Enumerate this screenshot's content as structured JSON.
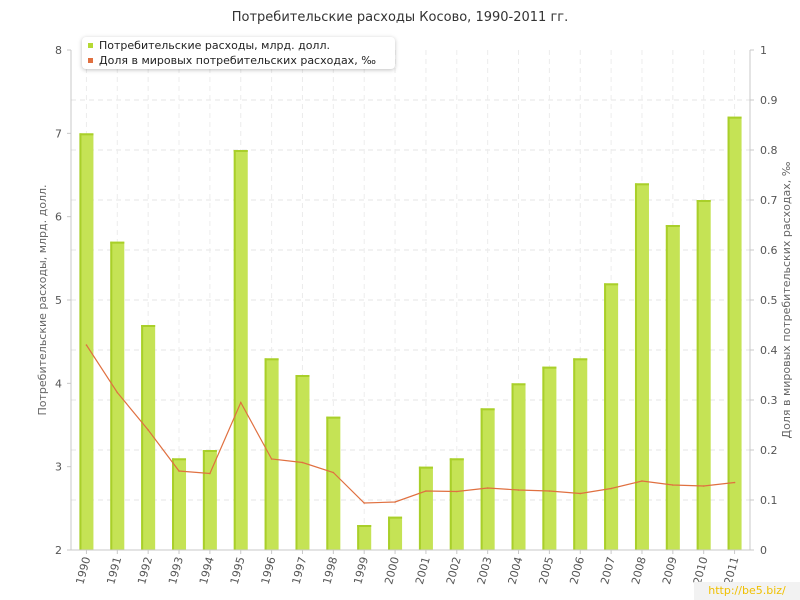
{
  "chart_data": {
    "type": "bar",
    "title": "Потребительские расходы Косово, 1990-2011 гг.",
    "categories": [
      "1990",
      "1991",
      "1992",
      "1993",
      "1994",
      "1995",
      "1996",
      "1997",
      "1998",
      "1999",
      "2000",
      "2001",
      "2002",
      "2003",
      "2004",
      "2005",
      "2006",
      "2007",
      "2008",
      "2009",
      "2010",
      "2011"
    ],
    "series": [
      {
        "name": "Потребительские расходы, млрд. долл.",
        "type": "bar",
        "axis": "left",
        "color": "#b5d934",
        "values": [
          7.0,
          5.7,
          4.7,
          3.1,
          3.2,
          6.8,
          4.3,
          4.1,
          3.6,
          2.3,
          2.4,
          3.0,
          3.1,
          3.7,
          4.0,
          4.2,
          4.3,
          5.2,
          6.4,
          5.9,
          6.2,
          7.2
        ]
      },
      {
        "name": "Доля в мировых потребительских расходах, ‰",
        "type": "line",
        "axis": "right",
        "color": "#e07040",
        "values": [
          0.41,
          0.315,
          0.24,
          0.158,
          0.153,
          0.295,
          0.182,
          0.175,
          0.155,
          0.094,
          0.096,
          0.118,
          0.117,
          0.124,
          0.12,
          0.118,
          0.113,
          0.123,
          0.138,
          0.13,
          0.128,
          0.135
        ]
      }
    ],
    "ylabel": "Потребительские расходы, млрд. долл.",
    "ylabel_right": "Доля в мировых потребительских расходах, ‰",
    "ylim": [
      2,
      8
    ],
    "ylim_right": [
      0,
      1
    ],
    "yticks": [
      "2",
      "3",
      "4",
      "5",
      "6",
      "7",
      "8"
    ],
    "yticks_right": [
      "0",
      "0.1",
      "0.2",
      "0.3",
      "0.4",
      "0.5",
      "0.6",
      "0.7",
      "0.8",
      "0.9",
      "1"
    ],
    "grid": true,
    "legend_position": "top-left"
  },
  "watermark": "http://be5.biz/"
}
